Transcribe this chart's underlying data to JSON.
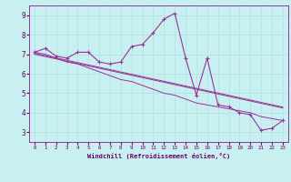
{
  "xlabel": "Windchill (Refroidissement éolien,°C)",
  "background_color": "#c8f0f0",
  "line_color": "#993399",
  "grid_color": "#b0e0e0",
  "xlim": [
    -0.5,
    23.5
  ],
  "ylim": [
    2.5,
    9.5
  ],
  "xticks": [
    0,
    1,
    2,
    3,
    4,
    5,
    6,
    7,
    8,
    9,
    10,
    11,
    12,
    13,
    14,
    15,
    16,
    17,
    18,
    19,
    20,
    21,
    22,
    23
  ],
  "yticks": [
    3,
    4,
    5,
    6,
    7,
    8,
    9
  ],
  "series": [
    [
      7.1,
      7.3,
      6.9,
      6.8,
      7.1,
      7.1,
      6.6,
      6.5,
      6.6,
      7.4,
      7.5,
      8.1,
      8.8,
      9.1,
      6.8,
      4.9,
      6.8,
      4.4,
      4.3,
      4.0,
      3.9,
      3.1,
      3.2,
      3.6
    ],
    [
      7.1,
      7.0,
      6.8,
      6.6,
      6.5,
      6.3,
      6.1,
      5.9,
      5.7,
      5.6,
      5.4,
      5.2,
      5.0,
      4.9,
      4.7,
      4.5,
      4.4,
      4.3,
      4.2,
      4.1,
      4.0,
      3.8,
      3.7,
      3.6
    ],
    [
      7.05,
      6.93,
      6.81,
      6.69,
      6.57,
      6.45,
      6.33,
      6.21,
      6.09,
      5.97,
      5.85,
      5.73,
      5.61,
      5.49,
      5.37,
      5.25,
      5.13,
      5.01,
      4.89,
      4.77,
      4.65,
      4.53,
      4.41,
      4.29
    ],
    [
      7.0,
      6.88,
      6.76,
      6.64,
      6.52,
      6.4,
      6.28,
      6.16,
      6.04,
      5.92,
      5.8,
      5.68,
      5.56,
      5.44,
      5.32,
      5.2,
      5.08,
      4.96,
      4.84,
      4.72,
      4.6,
      4.48,
      4.36,
      4.24
    ]
  ]
}
